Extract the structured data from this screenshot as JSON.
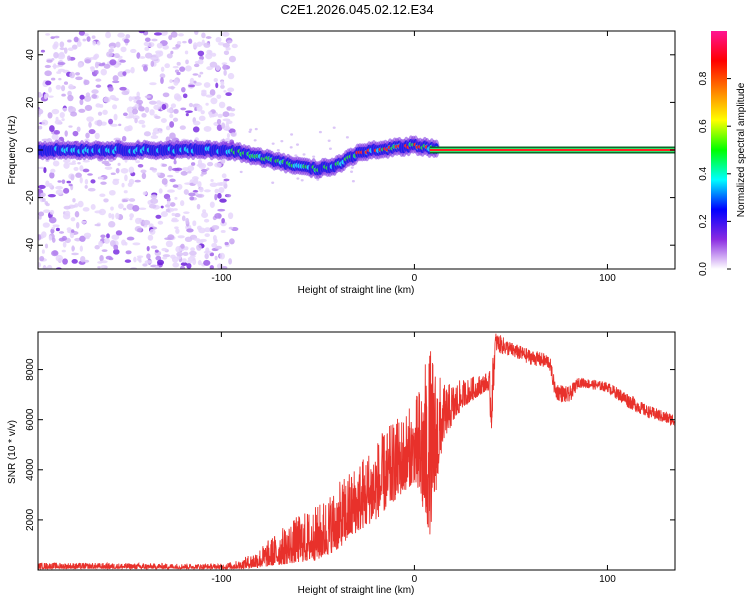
{
  "title": "C2E1.2026.045.02.12.E34",
  "chart_data": [
    {
      "type": "heatmap",
      "name": "spectrogram",
      "xlabel": "Height of straight line (km)",
      "ylabel": "Frequency (Hz)",
      "xlim": [
        -195,
        135
      ],
      "ylim": [
        -50,
        50
      ],
      "xticks": [
        -100,
        0,
        100
      ],
      "yticks": [
        -40,
        -20,
        0,
        20,
        40
      ],
      "noise_until_x": -93,
      "ridge": [
        {
          "x": -195,
          "y": 0
        },
        {
          "x": -100,
          "y": 0
        },
        {
          "x": -90,
          "y": -1
        },
        {
          "x": -80,
          "y": -3
        },
        {
          "x": -70,
          "y": -5
        },
        {
          "x": -60,
          "y": -7
        },
        {
          "x": -50,
          "y": -8
        },
        {
          "x": -42,
          "y": -7
        },
        {
          "x": -35,
          "y": -4
        },
        {
          "x": -28,
          "y": -1
        },
        {
          "x": -20,
          "y": 0
        },
        {
          "x": -10,
          "y": 1
        },
        {
          "x": 0,
          "y": 2
        },
        {
          "x": 8,
          "y": 1
        },
        {
          "x": 15,
          "y": 0
        },
        {
          "x": 135,
          "y": 0
        }
      ],
      "colorbar": {
        "label": "Normalized spectral amplitude",
        "ticks": [
          0.0,
          0.2,
          0.4,
          0.6,
          0.8
        ],
        "range": [
          0,
          1
        ],
        "colors": [
          "#ffffff",
          "#8a2be2",
          "#0000ff",
          "#00ffff",
          "#00ff00",
          "#ffff00",
          "#ff8000",
          "#ff0000",
          "#ff1493"
        ]
      }
    },
    {
      "type": "line",
      "name": "snr",
      "xlabel": "Height of straight line (km)",
      "ylabel": "SNR (10 * v/v)",
      "xlim": [
        -195,
        135
      ],
      "ylim": [
        0,
        9500
      ],
      "xticks": [
        -100,
        0,
        100
      ],
      "yticks": [
        2000,
        4000,
        6000,
        8000
      ],
      "line_color": "#e8312b",
      "envelope": [
        {
          "x": -195,
          "lo": 50,
          "hi": 300
        },
        {
          "x": -100,
          "lo": 50,
          "hi": 250
        },
        {
          "x": -90,
          "lo": 50,
          "hi": 400
        },
        {
          "x": -80,
          "lo": 100,
          "hi": 900
        },
        {
          "x": -70,
          "lo": 200,
          "hi": 1600
        },
        {
          "x": -60,
          "lo": 300,
          "hi": 2200
        },
        {
          "x": -50,
          "lo": 400,
          "hi": 2600
        },
        {
          "x": -40,
          "lo": 800,
          "hi": 3400
        },
        {
          "x": -30,
          "lo": 1500,
          "hi": 4300
        },
        {
          "x": -20,
          "lo": 2000,
          "hi": 5200
        },
        {
          "x": -10,
          "lo": 2800,
          "hi": 6000
        },
        {
          "x": 0,
          "lo": 3500,
          "hi": 6700
        },
        {
          "x": 8,
          "lo": 1400,
          "hi": 9000
        },
        {
          "x": 15,
          "lo": 5200,
          "hi": 7400
        },
        {
          "x": 25,
          "lo": 6500,
          "hi": 7600
        },
        {
          "x": 38,
          "lo": 7200,
          "hi": 7900
        },
        {
          "x": 40,
          "lo": 5500,
          "hi": 8000
        },
        {
          "x": 42,
          "lo": 8700,
          "hi": 9500
        },
        {
          "x": 50,
          "lo": 8500,
          "hi": 9100
        },
        {
          "x": 60,
          "lo": 8200,
          "hi": 8800
        },
        {
          "x": 70,
          "lo": 8000,
          "hi": 8600
        },
        {
          "x": 73,
          "lo": 6800,
          "hi": 7500
        },
        {
          "x": 80,
          "lo": 6600,
          "hi": 7300
        },
        {
          "x": 85,
          "lo": 7300,
          "hi": 7700
        },
        {
          "x": 100,
          "lo": 7100,
          "hi": 7500
        },
        {
          "x": 110,
          "lo": 6500,
          "hi": 7100
        },
        {
          "x": 120,
          "lo": 6100,
          "hi": 6600
        },
        {
          "x": 135,
          "lo": 5700,
          "hi": 6200
        }
      ]
    }
  ]
}
